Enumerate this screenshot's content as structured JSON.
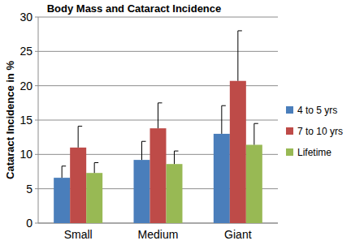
{
  "chart_data": {
    "type": "bar",
    "title": "Body Mass and Cataract Incidence",
    "y_label": "Cataract Incidence in %",
    "categories": [
      "Small",
      "Medium",
      "Giant"
    ],
    "series": [
      {
        "name": "4 to 5 yrs",
        "color": "#4a7ebb",
        "values": [
          6.6,
          9.2,
          13
        ],
        "errors": [
          1.7,
          2.7,
          4.1
        ]
      },
      {
        "name": "7 to 10 yrs",
        "color": "#be4b48",
        "values": [
          11,
          13.8,
          20.7
        ],
        "errors": [
          3.1,
          3.7,
          7.3
        ]
      },
      {
        "name": "Lifetime",
        "color": "#98b954",
        "values": [
          7.3,
          8.6,
          11.4
        ],
        "errors": [
          1.5,
          1.9,
          3.1
        ]
      }
    ],
    "ylim": [
      0,
      30
    ],
    "yticks": [
      0,
      5,
      10,
      15,
      20,
      25,
      30
    ],
    "grid": true,
    "legend": "right"
  }
}
